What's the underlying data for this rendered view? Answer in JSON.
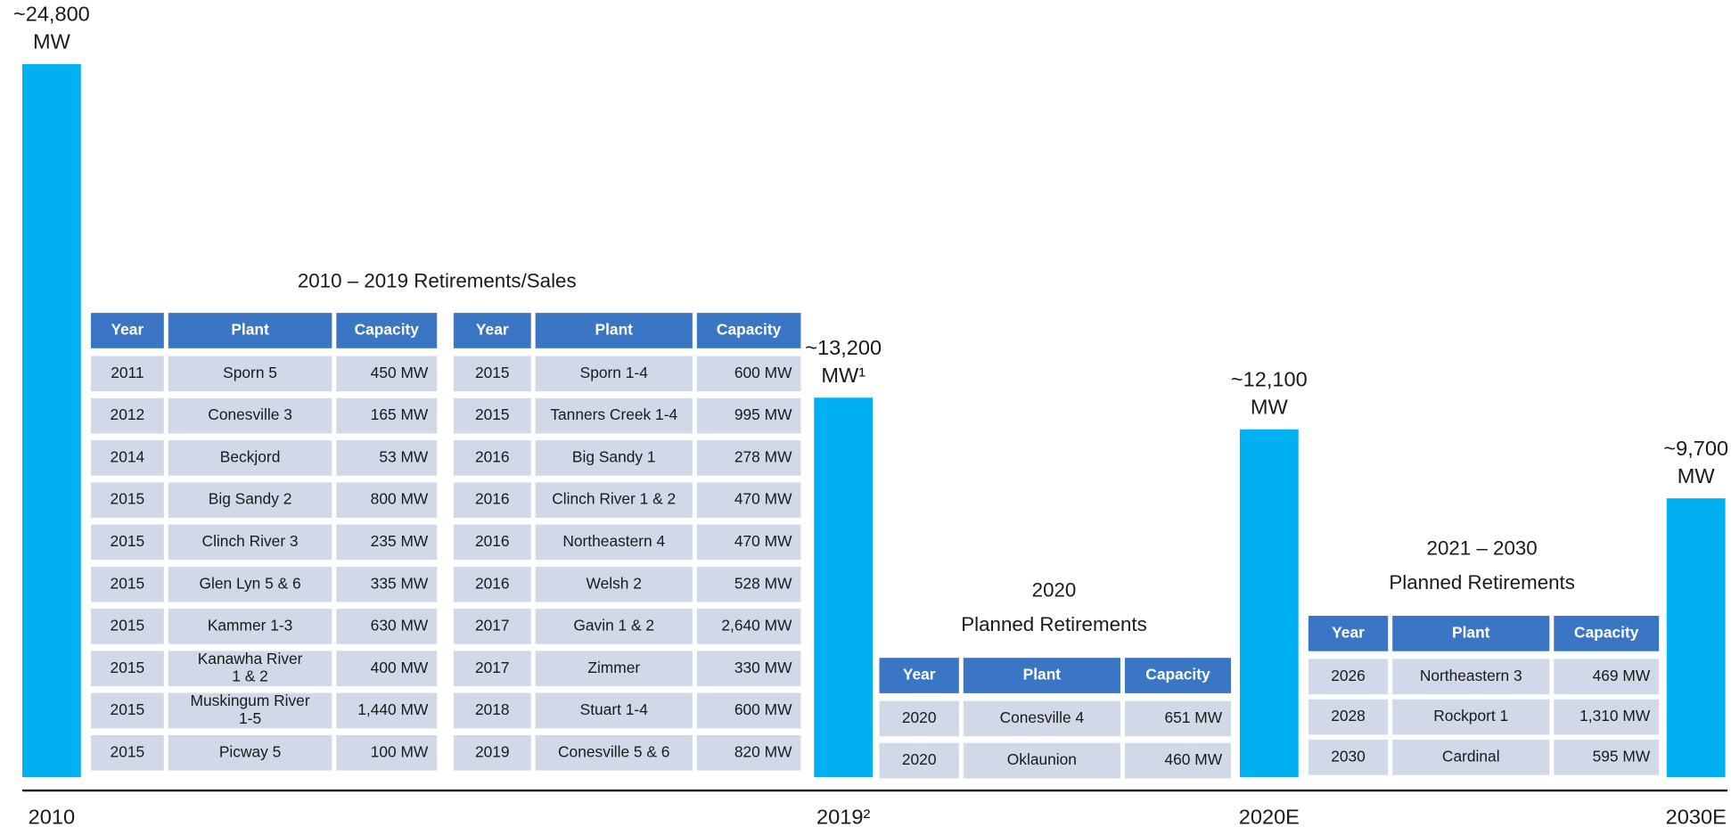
{
  "chart_data": {
    "type": "bar",
    "color": "#00b0f0",
    "categories": [
      "2010",
      "2019²",
      "2020E",
      "2030E"
    ],
    "values": [
      24800,
      13200,
      12100,
      9700
    ],
    "value_labels": [
      [
        "~24,800",
        "MW"
      ],
      [
        "~13,200",
        "MW¹"
      ],
      [
        "~12,100",
        "MW"
      ],
      [
        "~9,700",
        "MW"
      ]
    ]
  },
  "tables": [
    {
      "title": [
        "2010 – 2019 Retirements/Sales"
      ],
      "header": [
        "Year",
        "Plant",
        "Capacity"
      ],
      "rows": [
        [
          "2011",
          "Sporn 5",
          "450 MW"
        ],
        [
          "2012",
          "Conesville 3",
          "165 MW"
        ],
        [
          "2014",
          "Beckjord",
          "53 MW"
        ],
        [
          "2015",
          "Big Sandy 2",
          "800 MW"
        ],
        [
          "2015",
          "Clinch River 3",
          "235 MW"
        ],
        [
          "2015",
          "Glen Lyn 5 & 6",
          "335 MW"
        ],
        [
          "2015",
          "Kammer 1-3",
          "630 MW"
        ],
        [
          "2015",
          [
            "Kanawha River",
            "1 & 2"
          ],
          "400 MW"
        ],
        [
          "2015",
          [
            "Muskingum River",
            "1-5"
          ],
          "1,440 MW"
        ],
        [
          "2015",
          "Picway 5",
          "100 MW"
        ]
      ]
    },
    {
      "header": [
        "Year",
        "Plant",
        "Capacity"
      ],
      "rows": [
        [
          "2015",
          "Sporn 1-4",
          "600 MW"
        ],
        [
          "2015",
          "Tanners Creek 1-4",
          "995 MW"
        ],
        [
          "2016",
          "Big Sandy 1",
          "278 MW"
        ],
        [
          "2016",
          "Clinch River 1 & 2",
          "470 MW"
        ],
        [
          "2016",
          "Northeastern 4",
          "470 MW"
        ],
        [
          "2016",
          "Welsh 2",
          "528 MW"
        ],
        [
          "2017",
          "Gavin 1 & 2",
          "2,640 MW"
        ],
        [
          "2017",
          "Zimmer",
          "330 MW"
        ],
        [
          "2018",
          "Stuart 1-4",
          "600 MW"
        ],
        [
          "2019",
          "Conesville 5 & 6",
          "820 MW"
        ]
      ]
    },
    {
      "title": [
        "2020",
        "Planned Retirements"
      ],
      "header": [
        "Year",
        "Plant",
        "Capacity"
      ],
      "rows": [
        [
          "2020",
          "Conesville 4",
          "651 MW"
        ],
        [
          "2020",
          "Oklaunion",
          "460 MW"
        ]
      ]
    },
    {
      "title": [
        "2021 – 2030",
        "Planned Retirements"
      ],
      "header": [
        "Year",
        "Plant",
        "Capacity"
      ],
      "rows": [
        [
          "2026",
          "Northeastern 3",
          "469 MW"
        ],
        [
          "2028",
          "Rockport 1",
          "1,310 MW"
        ],
        [
          "2030",
          "Cardinal",
          "595 MW"
        ]
      ]
    }
  ]
}
